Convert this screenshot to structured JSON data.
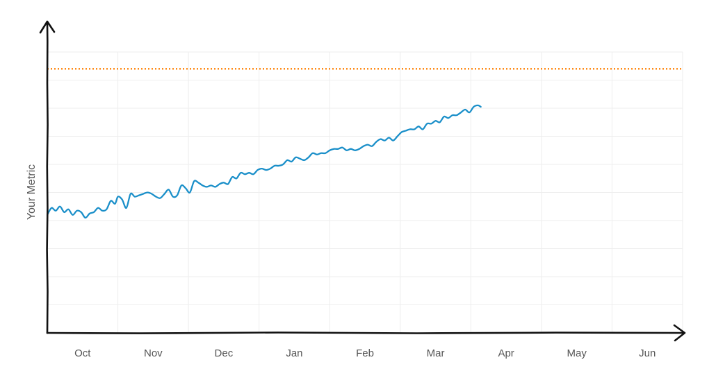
{
  "chart_data": {
    "type": "line",
    "ylabel": "Your Metric",
    "xlabel": "",
    "x_tick_labels": [
      "Oct",
      "Nov",
      "Dec",
      "Jan",
      "Feb",
      "Mar",
      "Apr",
      "May",
      "Jun"
    ],
    "y_tick_labels": [],
    "xlim": [
      0,
      9
    ],
    "ylim": [
      0,
      100
    ],
    "grid": true,
    "series": [
      {
        "color": "#1a8fc9",
        "x": [
          0.0,
          0.06,
          0.12,
          0.18,
          0.24,
          0.3,
          0.36,
          0.42,
          0.48,
          0.54,
          0.6,
          0.66,
          0.72,
          0.78,
          0.84,
          0.9,
          0.96,
          1.0,
          1.06,
          1.12,
          1.18,
          1.24,
          1.3,
          1.36,
          1.42,
          1.48,
          1.54,
          1.6,
          1.66,
          1.72,
          1.78,
          1.84,
          1.9,
          1.96,
          2.02,
          2.08,
          2.14,
          2.2,
          2.26,
          2.32,
          2.38,
          2.44,
          2.5,
          2.56,
          2.62,
          2.68,
          2.74,
          2.8,
          2.86,
          2.92,
          2.98,
          3.04,
          3.1,
          3.16,
          3.22,
          3.28,
          3.34,
          3.4,
          3.46,
          3.52,
          3.58,
          3.64,
          3.7,
          3.76,
          3.82,
          3.88,
          3.94,
          4.0,
          4.06,
          4.12,
          4.18,
          4.24,
          4.3,
          4.36,
          4.42,
          4.48,
          4.54,
          4.6,
          4.66,
          4.72,
          4.78,
          4.84,
          4.9,
          4.96,
          5.02,
          5.08,
          5.14,
          5.2,
          5.26,
          5.32,
          5.38,
          5.44,
          5.5,
          5.56,
          5.62,
          5.68,
          5.74,
          5.8,
          5.86,
          5.92,
          5.98,
          6.04,
          6.1,
          6.14
        ],
        "y": [
          42,
          44.5,
          43.5,
          45,
          43,
          44,
          42,
          43.5,
          43,
          41,
          42.5,
          43,
          44.5,
          43.5,
          44,
          47,
          46,
          48.5,
          47.5,
          44.5,
          49.5,
          48.5,
          49,
          49.5,
          50,
          49.5,
          48.5,
          48,
          49.5,
          51,
          48.5,
          49,
          52.5,
          51.5,
          50,
          54,
          53.5,
          52.5,
          52,
          52.5,
          52,
          53,
          53.5,
          53,
          55.5,
          55,
          57,
          56.5,
          57,
          56.5,
          58,
          58.5,
          58,
          58.5,
          59.5,
          59.5,
          60,
          61.5,
          61,
          62.5,
          62,
          61.5,
          62.5,
          64,
          63.5,
          64,
          64,
          65,
          65.5,
          65.5,
          66,
          65,
          65.5,
          65,
          65.5,
          66.5,
          67,
          66.5,
          68,
          69,
          68.5,
          69.5,
          68.5,
          70,
          71.5,
          72,
          72.5,
          72.5,
          73.5,
          72.5,
          74.5,
          74.5,
          75.5,
          75,
          77,
          76.5,
          77.5,
          77.5,
          78.5,
          79.5,
          78.5,
          80.5,
          81,
          80.5
        ]
      }
    ],
    "reference_line": {
      "type": "horizontal",
      "y": 94,
      "color": "#ff8c1a",
      "style": "dotted"
    }
  }
}
